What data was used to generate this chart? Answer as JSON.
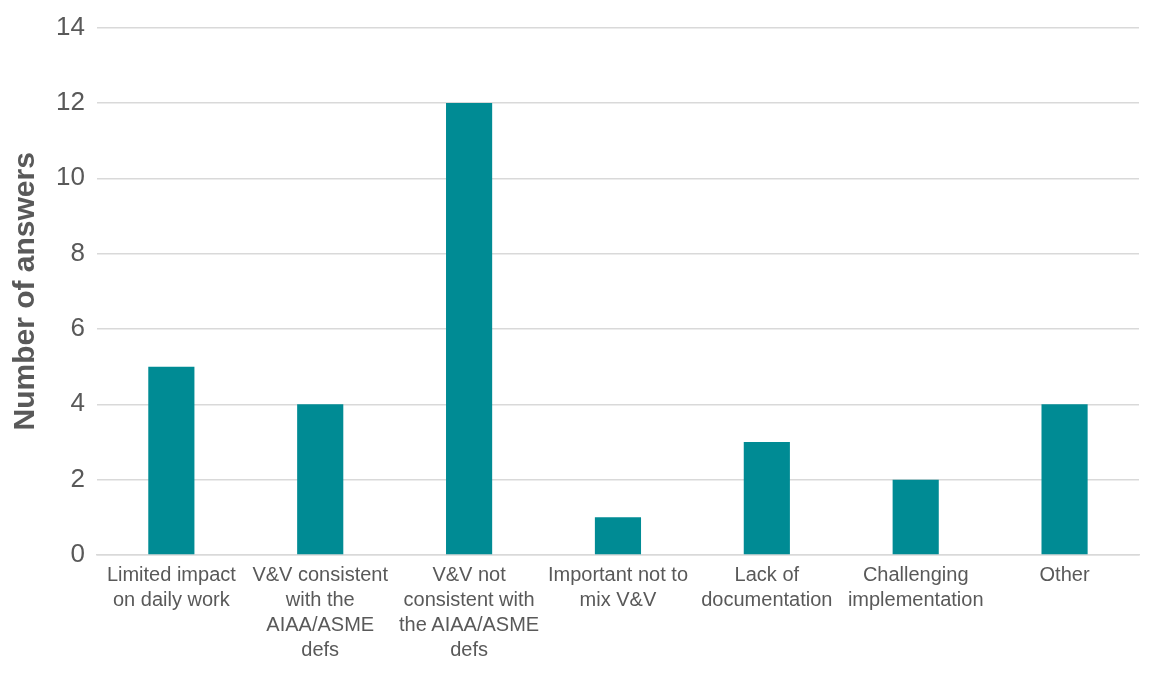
{
  "chart_data": {
    "type": "bar",
    "ylabel": "Number of answers",
    "categories": [
      "Limited impact on daily work",
      "V&V consistent with the AIAA/ASME defs",
      "V&V not consistent with the AIAA/ASME defs",
      "Important not to mix V&V",
      "Lack of documentation",
      "Challenging implementation",
      "Other"
    ],
    "values": [
      5,
      4,
      12,
      1,
      3,
      2,
      4
    ],
    "color": "#008b94",
    "ylim": [
      0,
      14
    ],
    "yticks": [
      0,
      2,
      4,
      6,
      8,
      10,
      12,
      14
    ],
    "grid": "y",
    "legend": false
  }
}
